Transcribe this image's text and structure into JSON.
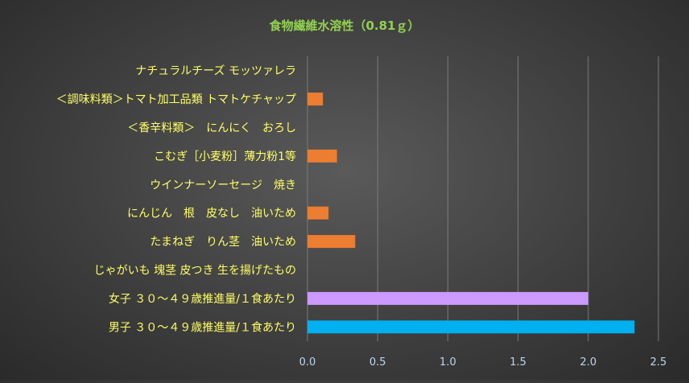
{
  "chart_data": {
    "type": "bar",
    "orientation": "horizontal",
    "title": "食物繊維水溶性（0.81ｇ）",
    "categories": [
      "ナチュラルチーズ モッツァレラ",
      "＜調味料類＞トマト加工品類 トマトケチャップ",
      "＜香辛料類＞　にんにく　おろし",
      "こむぎ［小麦粉］薄力粉1等",
      "ウインナーソーセージ　焼き",
      "にんじん　根　皮なし　油いため",
      "たまねぎ　りん茎　油いため",
      "じゃがいも 塊茎 皮つき 生を揚げたもの",
      "女子 ３０～４９歳推進量/１食あたり",
      "男子 ３０～４９歳推進量/１食あたり"
    ],
    "values": [
      0,
      0.11,
      0,
      0.21,
      0,
      0.15,
      0.34,
      0,
      2.0,
      2.33
    ],
    "bar_colors": [
      "#ED7D31",
      "#ED7D31",
      "#ED7D31",
      "#ED7D31",
      "#ED7D31",
      "#ED7D31",
      "#ED7D31",
      "#ED7D31",
      "#CC99FF",
      "#00B0F0"
    ],
    "xlim": [
      0,
      2.5
    ],
    "xticks": [
      "0.0",
      "0.5",
      "1.0",
      "1.5",
      "2.0",
      "2.5"
    ],
    "xtick_values": [
      0,
      0.5,
      1.0,
      1.5,
      2.0,
      2.5
    ],
    "grid": true,
    "colors": {
      "title": "#92D050",
      "label": "#FFFF66",
      "tick": "#BDD7EE",
      "grid": "#7a7a7a"
    }
  }
}
